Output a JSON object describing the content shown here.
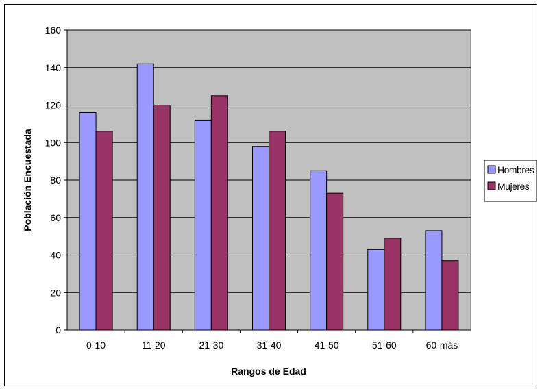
{
  "chart_data": {
    "type": "bar",
    "xlabel": "Rangos de Edad",
    "ylabel": "Población Encuestada",
    "categories": [
      "0-10",
      "11-20",
      "21-30",
      "31-40",
      "41-50",
      "51-60",
      "60-más"
    ],
    "series": [
      {
        "name": "Hombres",
        "values": [
          116,
          142,
          112,
          98,
          85,
          43,
          53
        ],
        "color": "#9999ff"
      },
      {
        "name": "Mujeres",
        "values": [
          106,
          120,
          125,
          106,
          73,
          49,
          37
        ],
        "color": "#993366"
      }
    ],
    "ylim": [
      0,
      160
    ],
    "yticks": [
      0,
      20,
      40,
      60,
      80,
      100,
      120,
      140,
      160
    ],
    "grid": true,
    "plot_background": "#c0c0c0",
    "legend_position": "right"
  }
}
